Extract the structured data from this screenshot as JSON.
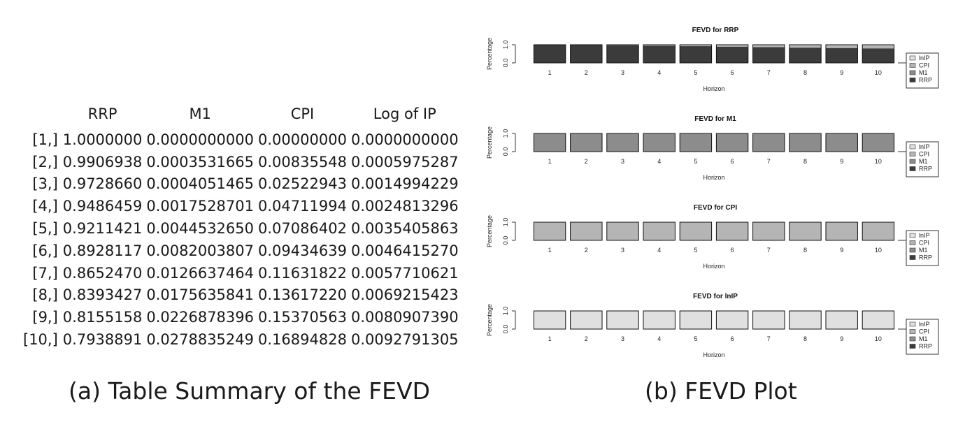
{
  "table": {
    "columns": [
      "",
      "RRP",
      "M1",
      "CPI",
      "Log of IP"
    ],
    "rows": [
      [
        "[1,]",
        "1.0000000",
        "0.0000000000",
        "0.00000000",
        "0.0000000000"
      ],
      [
        "[2,]",
        "0.9906938",
        "0.0003531665",
        "0.00835548",
        "0.0005975287"
      ],
      [
        "[3,]",
        "0.9728660",
        "0.0004051465",
        "0.02522943",
        "0.0014994229"
      ],
      [
        "[4,]",
        "0.9486459",
        "0.0017528701",
        "0.04711994",
        "0.0024813296"
      ],
      [
        "[5,]",
        "0.9211421",
        "0.0044532650",
        "0.07086402",
        "0.0035405863"
      ],
      [
        "[6,]",
        "0.8928117",
        "0.0082003807",
        "0.09434639",
        "0.0046415270"
      ],
      [
        "[7,]",
        "0.8652470",
        "0.0126637464",
        "0.11631822",
        "0.0057710621"
      ],
      [
        "[8,]",
        "0.8393427",
        "0.0175635841",
        "0.13617220",
        "0.0069215423"
      ],
      [
        "[9,]",
        "0.8155158",
        "0.0226878396",
        "0.15370563",
        "0.0080907390"
      ],
      [
        "[10,]",
        "0.7938891",
        "0.0278835249",
        "0.16894828",
        "0.0092791305"
      ]
    ]
  },
  "captions": {
    "a": "(a) Table Summary of the FEVD",
    "b": "(b) FEVD Plot"
  },
  "chart_data": {
    "type": "bar",
    "stacked": true,
    "categories": [
      "1",
      "2",
      "3",
      "4",
      "5",
      "6",
      "7",
      "8",
      "9",
      "10"
    ],
    "xlabel": "Horizon",
    "ylabel": "Percentage",
    "yticks": [
      "0.0",
      "1.0"
    ],
    "ylim": [
      0,
      1
    ],
    "legend": {
      "placement": "right",
      "entries": [
        "lnIP",
        "CPI",
        "M1",
        "RRP"
      ]
    },
    "colors": {
      "RRP": "#3b3b3b",
      "M1": "#8c8c8c",
      "CPI": "#b5b5b5",
      "lnIP": "#e0e0e0"
    },
    "panels": [
      {
        "title": "FEVD for RRP",
        "series": [
          {
            "name": "RRP",
            "values": [
              1.0,
              0.991,
              0.973,
              0.949,
              0.921,
              0.893,
              0.865,
              0.839,
              0.816,
              0.794
            ]
          },
          {
            "name": "M1",
            "values": [
              0.0,
              0.0004,
              0.0004,
              0.0018,
              0.0045,
              0.0082,
              0.0127,
              0.0176,
              0.0227,
              0.0279
            ]
          },
          {
            "name": "CPI",
            "values": [
              0.0,
              0.0084,
              0.0252,
              0.0471,
              0.0709,
              0.0943,
              0.1163,
              0.1362,
              0.1537,
              0.1689
            ]
          },
          {
            "name": "lnIP",
            "values": [
              0.0,
              0.0006,
              0.0015,
              0.0025,
              0.0035,
              0.0046,
              0.0058,
              0.0069,
              0.0081,
              0.0093
            ]
          }
        ]
      },
      {
        "title": "FEVD for M1",
        "series": [
          {
            "name": "RRP",
            "values": [
              0.01,
              0.01,
              0.01,
              0.01,
              0.01,
              0.01,
              0.01,
              0.01,
              0.01,
              0.01
            ]
          },
          {
            "name": "M1",
            "values": [
              0.99,
              0.99,
              0.99,
              0.99,
              0.99,
              0.99,
              0.99,
              0.99,
              0.99,
              0.99
            ]
          },
          {
            "name": "CPI",
            "values": [
              0,
              0,
              0,
              0,
              0,
              0,
              0,
              0,
              0,
              0
            ]
          },
          {
            "name": "lnIP",
            "values": [
              0,
              0,
              0,
              0,
              0,
              0,
              0,
              0,
              0,
              0
            ]
          }
        ]
      },
      {
        "title": "FEVD for CPI",
        "series": [
          {
            "name": "RRP",
            "values": [
              0.0,
              0.0,
              0.0,
              0.0,
              0.0,
              0.0,
              0.005,
              0.01,
              0.015,
              0.02
            ]
          },
          {
            "name": "M1",
            "values": [
              0.0,
              0.0,
              0.0,
              0.0,
              0.0,
              0.0,
              0.0,
              0.0,
              0.0,
              0.0
            ]
          },
          {
            "name": "CPI",
            "values": [
              1.0,
              1.0,
              1.0,
              1.0,
              1.0,
              1.0,
              0.995,
              0.99,
              0.985,
              0.98
            ]
          },
          {
            "name": "lnIP",
            "values": [
              0,
              0,
              0,
              0,
              0,
              0,
              0,
              0,
              0,
              0
            ]
          }
        ]
      },
      {
        "title": "FEVD for lnIP",
        "series": [
          {
            "name": "RRP",
            "values": [
              0.0,
              0.0,
              0.0,
              0.0,
              0.0,
              0.0,
              0.005,
              0.01,
              0.02,
              0.03
            ]
          },
          {
            "name": "M1",
            "values": [
              0.0,
              0.0,
              0.0,
              0.0,
              0.0,
              0.0,
              0.0,
              0.0,
              0.0,
              0.0
            ]
          },
          {
            "name": "CPI",
            "values": [
              0.0,
              0.0,
              0.0,
              0.0,
              0.0,
              0.0,
              0.0,
              0.0,
              0.0,
              0.0
            ]
          },
          {
            "name": "lnIP",
            "values": [
              1.0,
              1.0,
              1.0,
              1.0,
              1.0,
              1.0,
              0.995,
              0.99,
              0.98,
              0.97
            ]
          }
        ]
      }
    ]
  }
}
